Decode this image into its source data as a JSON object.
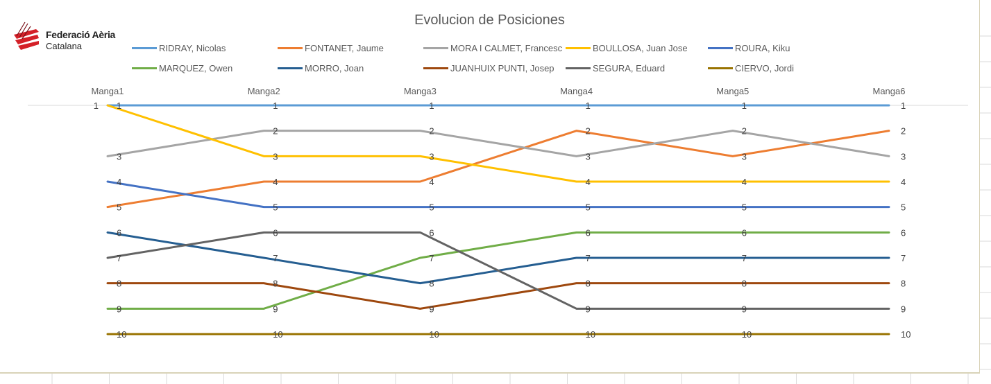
{
  "logo": {
    "line1": "Federació Aèria",
    "line2": "Catalana"
  },
  "chart_data": {
    "type": "line",
    "title": "Evolucion de Posiciones",
    "categories": [
      "Manga1",
      "Manga2",
      "Manga3",
      "Manga4",
      "Manga5",
      "Manga6"
    ],
    "ylim": [
      1,
      10
    ],
    "y_reversed": true,
    "legend_position": "top",
    "series": [
      {
        "name": "RIDRAY, Nicolas",
        "color": "#5B9BD5",
        "values": [
          1,
          1,
          1,
          1,
          1,
          1
        ]
      },
      {
        "name": "FONTANET, Jaume",
        "color": "#ED7D31",
        "values": [
          5,
          4,
          4,
          2,
          3,
          2
        ]
      },
      {
        "name": "MORA I CALMET, Francesc",
        "color": "#A5A5A5",
        "values": [
          3,
          2,
          2,
          3,
          2,
          3
        ]
      },
      {
        "name": "BOULLOSA, Juan Jose",
        "color": "#FFC000",
        "values": [
          1,
          3,
          3,
          4,
          4,
          4
        ]
      },
      {
        "name": "ROURA, Kiku",
        "color": "#4472C4",
        "values": [
          4,
          5,
          5,
          5,
          5,
          5
        ]
      },
      {
        "name": "MARQUEZ, Owen",
        "color": "#70AD47",
        "values": [
          9,
          9,
          7,
          6,
          6,
          6
        ]
      },
      {
        "name": "MORRO, Joan",
        "color": "#255E91",
        "values": [
          6,
          7,
          8,
          7,
          7,
          7
        ]
      },
      {
        "name": "JUANHUIX PUNTI, Josep",
        "color": "#9E480E",
        "values": [
          8,
          8,
          9,
          8,
          8,
          8
        ]
      },
      {
        "name": "SEGURA, Eduard",
        "color": "#636363",
        "values": [
          7,
          6,
          6,
          9,
          9,
          9
        ]
      },
      {
        "name": "CIERVO, Jordi",
        "color": "#997300",
        "values": [
          10,
          10,
          10,
          10,
          10,
          10
        ]
      }
    ]
  }
}
